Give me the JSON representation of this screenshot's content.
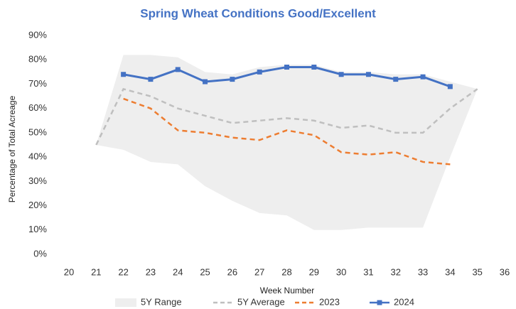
{
  "chart_data": {
    "type": "line",
    "title": "Spring Wheat Conditions Good/Excellent",
    "x_label": "Week Number",
    "y_label": "Percentage of Total Acreage",
    "x": [
      21,
      22,
      23,
      24,
      25,
      26,
      27,
      28,
      29,
      30,
      31,
      32,
      33,
      34,
      35
    ],
    "range": {
      "name": "5Y Range",
      "color": "#eeeeee",
      "upper": [
        45,
        82,
        82,
        81,
        75,
        74,
        77,
        78,
        78,
        75,
        75,
        74,
        74,
        71,
        68
      ],
      "lower": [
        45,
        43,
        38,
        37,
        28,
        22,
        17,
        16,
        10,
        10,
        11,
        11,
        11,
        40,
        68
      ]
    },
    "series": [
      {
        "name": "5Y Average",
        "color": "#bfbfbf",
        "dash": true,
        "values": [
          45,
          68,
          65,
          60,
          57,
          54,
          55,
          56,
          55,
          52,
          53,
          50,
          50,
          60,
          68
        ]
      },
      {
        "name": "2023",
        "color": "#ed7d31",
        "dash": true,
        "values": [
          null,
          64,
          60,
          51,
          50,
          48,
          47,
          51,
          49,
          42,
          41,
          42,
          38,
          37,
          null
        ]
      },
      {
        "name": "2024",
        "color": "#4472c4",
        "dash": false,
        "markers": true,
        "values": [
          null,
          74,
          72,
          76,
          71,
          72,
          75,
          77,
          77,
          74,
          74,
          72,
          73,
          69,
          null
        ]
      }
    ],
    "xlim": [
      20,
      36
    ],
    "xticks": [
      20,
      21,
      22,
      23,
      24,
      25,
      26,
      27,
      28,
      29,
      30,
      31,
      32,
      33,
      34,
      35,
      36
    ],
    "ylim": [
      0,
      90
    ],
    "yticks": [
      {
        "value": 0,
        "label": "0%"
      },
      {
        "value": 10,
        "label": "10%"
      },
      {
        "value": 20,
        "label": "20%"
      },
      {
        "value": 30,
        "label": "30%"
      },
      {
        "value": 40,
        "label": "40%"
      },
      {
        "value": 50,
        "label": "50%"
      },
      {
        "value": 60,
        "label": "60%"
      },
      {
        "value": 70,
        "label": "70%"
      },
      {
        "value": 80,
        "label": "80%"
      },
      {
        "value": 90,
        "label": "90%"
      }
    ],
    "legend": "bottom"
  }
}
